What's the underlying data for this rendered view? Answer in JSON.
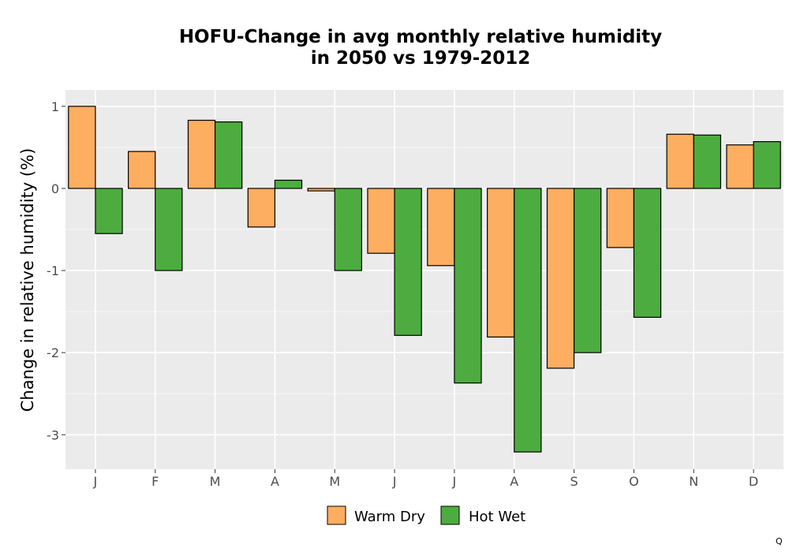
{
  "chart_data": {
    "type": "bar",
    "title_line1": "HOFU-Change in avg monthly relative humidity",
    "title_line2": "in 2050 vs 1979-2012",
    "xlabel": "",
    "ylabel": "Change in relative humidity (%)",
    "categories": [
      "J",
      "F",
      "M",
      "A",
      "M",
      "J",
      "J",
      "A",
      "S",
      "O",
      "N",
      "D"
    ],
    "series": [
      {
        "name": "Warm Dry",
        "color": "#FDAE61",
        "values": [
          1.0,
          0.45,
          0.83,
          -0.47,
          -0.03,
          -0.79,
          -0.94,
          -1.81,
          -2.19,
          -0.72,
          0.66,
          0.53
        ]
      },
      {
        "name": "Hot Wet",
        "color": "#4DAC3F",
        "values": [
          -0.55,
          -1.0,
          0.81,
          0.1,
          -1.0,
          -1.79,
          -2.37,
          -3.21,
          -2.0,
          -1.57,
          0.65,
          0.57
        ]
      }
    ],
    "yticks": [
      1,
      0,
      -1,
      -2,
      -3
    ],
    "ytick_labels": [
      "1",
      "0",
      "-1",
      "-2",
      "-3"
    ],
    "ylim": [
      -3.42,
      1.2
    ],
    "grid": true,
    "legend_position": "bottom"
  },
  "corner_mark": "Q"
}
